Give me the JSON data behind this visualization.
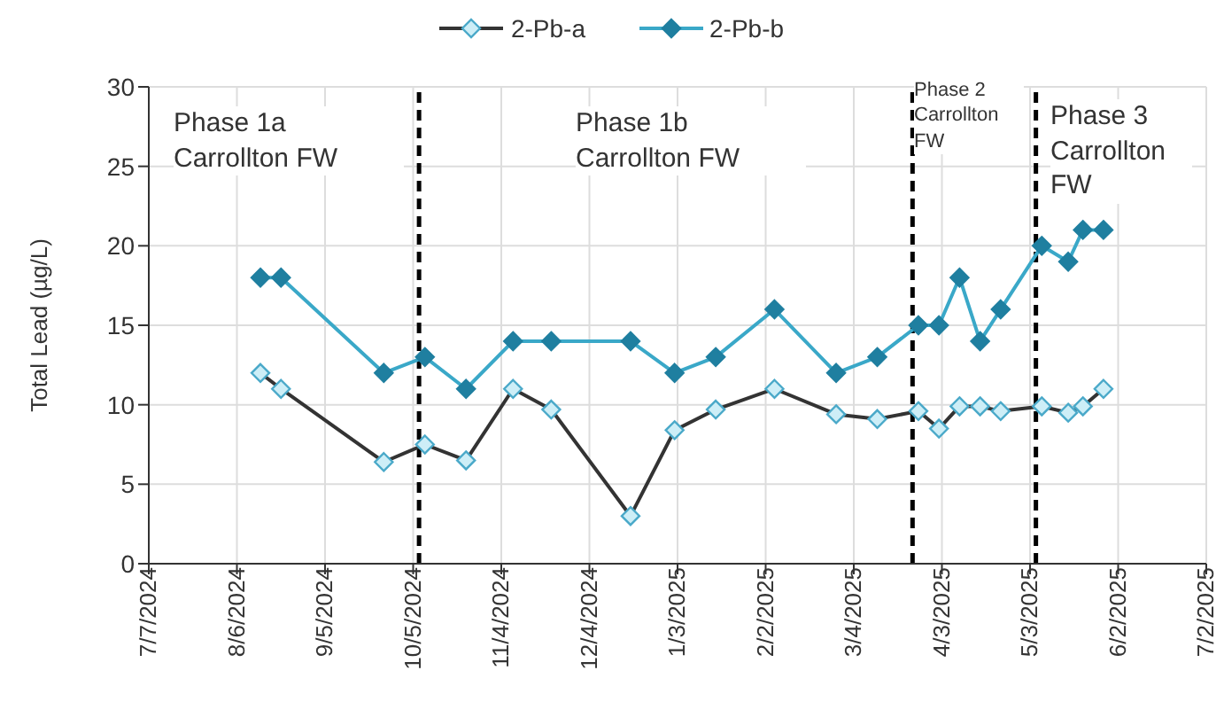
{
  "chart_data": {
    "type": "line",
    "ylabel": "Total Lead (µg/L)",
    "xlim": [
      "2024-07-07",
      "2025-07-02"
    ],
    "xticks": [
      {
        "value": "2024-07-07",
        "label": "7/7/2024"
      },
      {
        "value": "2024-08-06",
        "label": "8/6/2024"
      },
      {
        "value": "2024-09-05",
        "label": "9/5/2024"
      },
      {
        "value": "2024-10-05",
        "label": "10/5/2024"
      },
      {
        "value": "2024-11-04",
        "label": "11/4/2024"
      },
      {
        "value": "2024-12-04",
        "label": "12/4/2024"
      },
      {
        "value": "2025-01-03",
        "label": "1/3/2025"
      },
      {
        "value": "2025-02-02",
        "label": "2/2/2025"
      },
      {
        "value": "2025-03-04",
        "label": "3/4/2025"
      },
      {
        "value": "2025-04-03",
        "label": "4/3/2025"
      },
      {
        "value": "2025-05-03",
        "label": "5/3/2025"
      },
      {
        "value": "2025-06-02",
        "label": "6/2/2025"
      },
      {
        "value": "2025-07-02",
        "label": "7/2/2025"
      }
    ],
    "ylim": [
      0,
      30
    ],
    "yticks": [
      0,
      5,
      10,
      15,
      20,
      25,
      30
    ],
    "x": [
      "2024-08-14",
      "2024-08-21",
      "2024-09-25",
      "2024-10-09",
      "2024-10-23",
      "2024-11-08",
      "2024-11-21",
      "2024-12-18",
      "2025-01-02",
      "2025-01-16",
      "2025-02-05",
      "2025-02-26",
      "2025-03-12",
      "2025-03-26",
      "2025-04-02",
      "2025-04-09",
      "2025-04-16",
      "2025-04-23",
      "2025-05-07",
      "2025-05-16",
      "2025-05-21",
      "2025-05-28"
    ],
    "series": [
      {
        "name": "2-Pb-a",
        "color": "#333333",
        "values": [
          12,
          11,
          6.4,
          7.5,
          6.5,
          11,
          9.7,
          3,
          8.4,
          9.7,
          11,
          9.4,
          9.1,
          9.6,
          8.5,
          9.9,
          9.9,
          9.6,
          9.9,
          9.5,
          9.9,
          11
        ]
      },
      {
        "name": "2-Pb-b",
        "color": "#3aa8c8",
        "values": [
          18,
          18,
          12,
          13,
          11,
          14,
          14,
          14,
          12,
          13,
          16,
          12,
          13,
          15,
          15,
          18,
          14,
          16,
          20,
          19,
          21,
          21
        ]
      }
    ],
    "ref_lines": [
      {
        "axis": "x",
        "value": "2024-10-07",
        "color": "#000000",
        "line_style": "dashed"
      },
      {
        "axis": "x",
        "value": "2025-03-24",
        "color": "#000000",
        "line_style": "dashed"
      },
      {
        "axis": "x",
        "value": "2025-05-05",
        "color": "#000000",
        "line_style": "dashed"
      }
    ],
    "annotations": [
      "Phase 1a Carrollton FW",
      "Phase 1b Carrollton FW",
      "Phase 2 Carrollton FW",
      "Phase 3 Carrollton FW"
    ],
    "grid": true,
    "legend": "top",
    "marker": "diamond",
    "line_style": "solid"
  }
}
